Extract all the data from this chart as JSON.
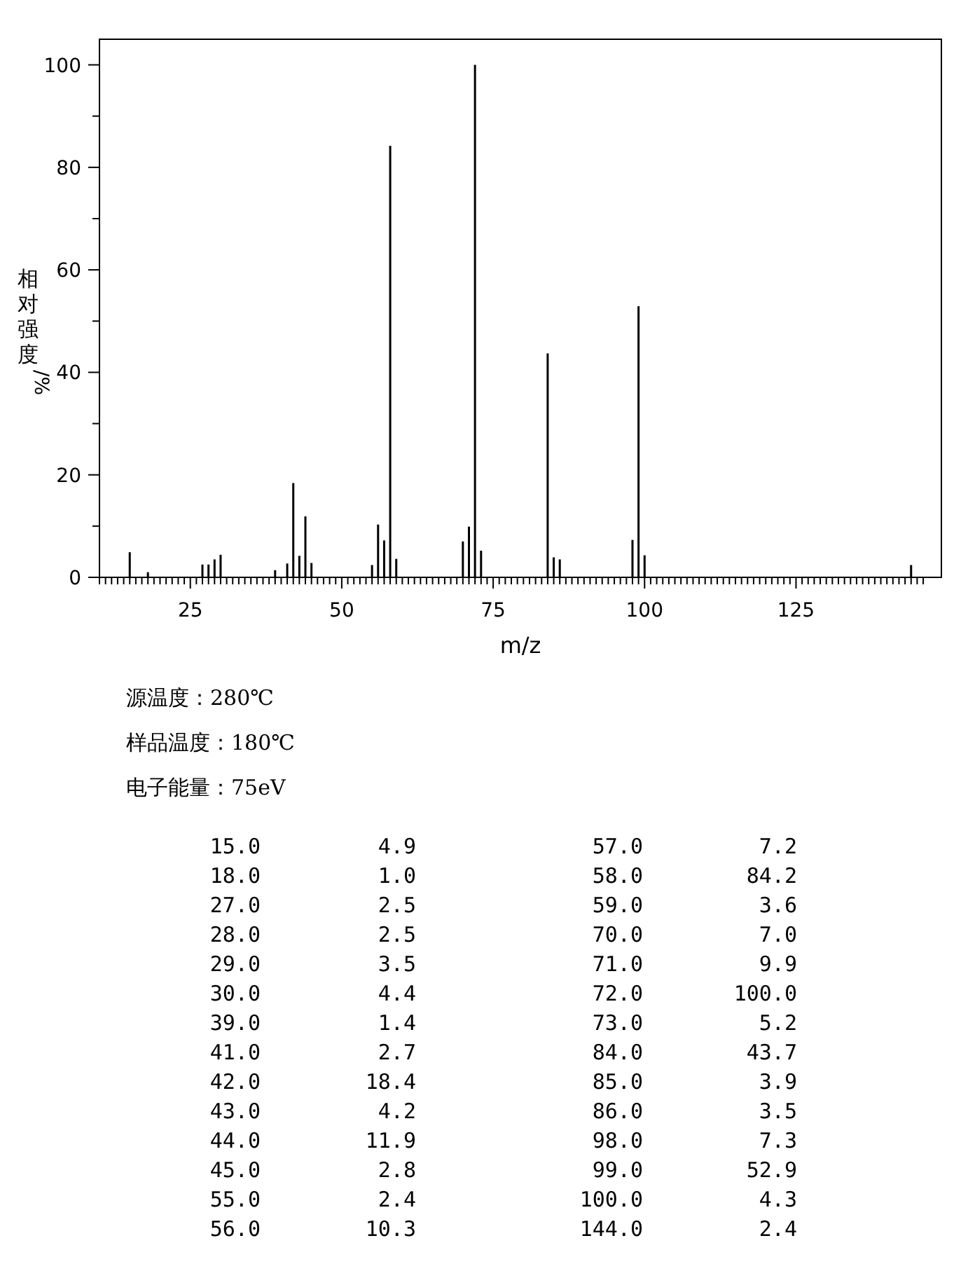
{
  "chart_data": {
    "type": "bar",
    "xlabel": "m/z",
    "ylabel": "相对强度/%",
    "annotations": [
      "源温度：280℃",
      "样品温度：180℃",
      "电子能量：75eV",
      "15.0",
      "4.9",
      "57.0",
      "7.2",
      "18.0",
      "1.0",
      "58.0",
      "84.2",
      "27.0",
      "2.5",
      "59.0",
      "3.6",
      "28.0",
      "2.5",
      "70.0",
      "7.0",
      "29.0",
      "3.5",
      "71.0",
      "9.9",
      "30.0",
      "4.4",
      "72.0",
      "100.0",
      "39.0",
      "1.4",
      "73.0",
      "5.2",
      "41.0",
      "2.7",
      "84.0",
      "43.7",
      "42.0",
      "18.4",
      "85.0",
      "3.9",
      "43.0",
      "4.2",
      "86.0",
      "3.5",
      "44.0",
      "11.9",
      "98.0",
      "7.3",
      "45.0",
      "2.8",
      "99.0",
      "52.9",
      "55.0",
      "2.4",
      "100.0",
      "4.3",
      "56.0",
      "10.3",
      "144.0",
      "2.4"
    ],
    "x": [
      15,
      18,
      27,
      28,
      29,
      30,
      39,
      41,
      42,
      43,
      44,
      45,
      55,
      56,
      57,
      58,
      59,
      70,
      71,
      72,
      73,
      84,
      85,
      86,
      98,
      99,
      100,
      144
    ],
    "values": [
      4.9,
      1.0,
      2.5,
      2.5,
      3.5,
      4.4,
      1.4,
      2.7,
      18.4,
      4.2,
      11.9,
      2.8,
      2.4,
      10.3,
      7.2,
      84.2,
      3.6,
      7.0,
      9.9,
      100.0,
      5.2,
      43.7,
      3.9,
      3.5,
      7.3,
      52.9,
      4.3,
      2.4
    ],
    "color": "#000000",
    "xlim": [
      10,
      149
    ],
    "ylim": [
      0,
      105
    ],
    "xticks": [
      {
        "value": 10,
        "label": null
      },
      {
        "value": 11,
        "label": null
      },
      {
        "value": 12,
        "label": null
      },
      {
        "value": 13,
        "label": null
      },
      {
        "value": 14,
        "label": null
      },
      {
        "value": 15,
        "label": null
      },
      {
        "value": 16,
        "label": null
      },
      {
        "value": 17,
        "label": null
      },
      {
        "value": 18,
        "label": null
      },
      {
        "value": 19,
        "label": null
      },
      {
        "value": 20,
        "label": null
      },
      {
        "value": 21,
        "label": null
      },
      {
        "value": 22,
        "label": null
      },
      {
        "value": 23,
        "label": null
      },
      {
        "value": 24,
        "label": null
      },
      25,
      {
        "value": 26,
        "label": null
      },
      {
        "value": 27,
        "label": null
      },
      {
        "value": 28,
        "label": null
      },
      {
        "value": 29,
        "label": null
      },
      {
        "value": 30,
        "label": null
      },
      {
        "value": 31,
        "label": null
      },
      {
        "value": 32,
        "label": null
      },
      {
        "value": 33,
        "label": null
      },
      {
        "value": 34,
        "label": null
      },
      {
        "value": 35,
        "label": null
      },
      {
        "value": 36,
        "label": null
      },
      {
        "value": 37,
        "label": null
      },
      {
        "value": 38,
        "label": null
      },
      {
        "value": 39,
        "label": null
      },
      {
        "value": 40,
        "label": null
      },
      {
        "value": 41,
        "label": null
      },
      {
        "value": 42,
        "label": null
      },
      {
        "value": 43,
        "label": null
      },
      {
        "value": 44,
        "label": null
      },
      {
        "value": 45,
        "label": null
      },
      {
        "value": 46,
        "label": null
      },
      {
        "value": 47,
        "label": null
      },
      {
        "value": 48,
        "label": null
      },
      {
        "value": 49,
        "label": null
      },
      50,
      {
        "value": 51,
        "label": null
      },
      {
        "value": 52,
        "label": null
      },
      {
        "value": 53,
        "label": null
      },
      {
        "value": 54,
        "label": null
      },
      {
        "value": 55,
        "label": null
      },
      {
        "value": 56,
        "label": null
      },
      {
        "value": 57,
        "label": null
      },
      {
        "value": 58,
        "label": null
      },
      {
        "value": 59,
        "label": null
      },
      {
        "value": 60,
        "label": null
      },
      {
        "value": 61,
        "label": null
      },
      {
        "value": 62,
        "label": null
      },
      {
        "value": 63,
        "label": null
      },
      {
        "value": 64,
        "label": null
      },
      {
        "value": 65,
        "label": null
      },
      {
        "value": 66,
        "label": null
      },
      {
        "value": 67,
        "label": null
      },
      {
        "value": 68,
        "label": null
      },
      {
        "value": 69,
        "label": null
      },
      {
        "value": 70,
        "label": null
      },
      {
        "value": 71,
        "label": null
      },
      {
        "value": 72,
        "label": null
      },
      {
        "value": 73,
        "label": null
      },
      {
        "value": 74,
        "label": null
      },
      75,
      {
        "value": 76,
        "label": null
      },
      {
        "value": 77,
        "label": null
      },
      {
        "value": 78,
        "label": null
      },
      {
        "value": 79,
        "label": null
      },
      {
        "value": 80,
        "label": null
      },
      {
        "value": 81,
        "label": null
      },
      {
        "value": 82,
        "label": null
      },
      {
        "value": 83,
        "label": null
      },
      {
        "value": 84,
        "label": null
      },
      {
        "value": 85,
        "label": null
      },
      {
        "value": 86,
        "label": null
      },
      {
        "value": 87,
        "label": null
      },
      {
        "value": 88,
        "label": null
      },
      {
        "value": 89,
        "label": null
      },
      {
        "value": 90,
        "label": null
      },
      {
        "value": 91,
        "label": null
      },
      {
        "value": 92,
        "label": null
      },
      {
        "value": 93,
        "label": null
      },
      {
        "value": 94,
        "label": null
      },
      {
        "value": 95,
        "label": null
      },
      {
        "value": 96,
        "label": null
      },
      {
        "value": 97,
        "label": null
      },
      {
        "value": 98,
        "label": null
      },
      {
        "value": 99,
        "label": null
      },
      100,
      {
        "value": 101,
        "label": null
      },
      {
        "value": 102,
        "label": null
      },
      {
        "value": 103,
        "label": null
      },
      {
        "value": 104,
        "label": null
      },
      {
        "value": 105,
        "label": null
      },
      {
        "value": 106,
        "label": null
      },
      {
        "value": 107,
        "label": null
      },
      {
        "value": 108,
        "label": null
      },
      {
        "value": 109,
        "label": null
      },
      {
        "value": 110,
        "label": null
      },
      {
        "value": 111,
        "label": null
      },
      {
        "value": 112,
        "label": null
      },
      {
        "value": 113,
        "label": null
      },
      {
        "value": 114,
        "label": null
      },
      {
        "value": 115,
        "label": null
      },
      {
        "value": 116,
        "label": null
      },
      {
        "value": 117,
        "label": null
      },
      {
        "value": 118,
        "label": null
      },
      {
        "value": 119,
        "label": null
      },
      {
        "value": 120,
        "label": null
      },
      {
        "value": 121,
        "label": null
      },
      {
        "value": 122,
        "label": null
      },
      {
        "value": 123,
        "label": null
      },
      {
        "value": 124,
        "label": null
      },
      125,
      {
        "value": 126,
        "label": null
      },
      {
        "value": 127,
        "label": null
      },
      {
        "value": 128,
        "label": null
      },
      {
        "value": 129,
        "label": null
      },
      {
        "value": 130,
        "label": null
      },
      {
        "value": 131,
        "label": null
      },
      {
        "value": 132,
        "label": null
      },
      {
        "value": 133,
        "label": null
      },
      {
        "value": 134,
        "label": null
      },
      {
        "value": 135,
        "label": null
      },
      {
        "value": 136,
        "label": null
      },
      {
        "value": 137,
        "label": null
      },
      {
        "value": 138,
        "label": null
      },
      {
        "value": 139,
        "label": null
      },
      {
        "value": 140,
        "label": null
      },
      {
        "value": 141,
        "label": null
      },
      {
        "value": 142,
        "label": null
      },
      {
        "value": 143,
        "label": null
      },
      {
        "value": 144,
        "label": null
      },
      {
        "value": 145,
        "label": null
      },
      {
        "value": 146,
        "label": null
      }
    ],
    "yticks": [
      0,
      {
        "value": 10,
        "label": null
      },
      20,
      {
        "value": 30,
        "label": null
      },
      40,
      {
        "value": 50,
        "label": null
      },
      60,
      {
        "value": 70,
        "label": null
      },
      80,
      {
        "value": 90,
        "label": null
      },
      100
    ],
    "grid": false
  }
}
